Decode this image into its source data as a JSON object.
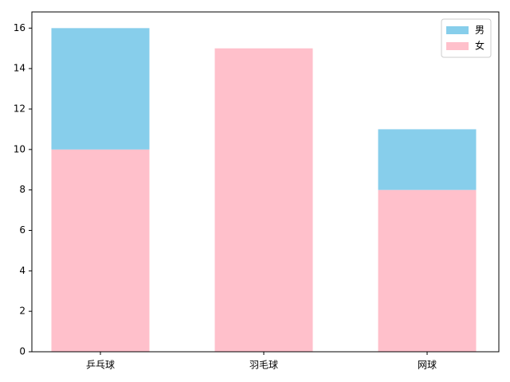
{
  "chart_data": {
    "type": "stacked_bar",
    "categories": [
      "乒乓球",
      "羽毛球",
      "网球"
    ],
    "series": [
      {
        "name": "男",
        "color": "#87ceeb",
        "values": [
          6,
          0,
          3
        ]
      },
      {
        "name": "女",
        "color": "#ffc0cb",
        "values": [
          10,
          15,
          8
        ]
      }
    ],
    "ylim": [
      0,
      16.8
    ],
    "yticks": [
      0,
      2,
      4,
      6,
      8,
      10,
      12,
      14,
      16
    ],
    "legend": "upper right",
    "grid": false
  }
}
